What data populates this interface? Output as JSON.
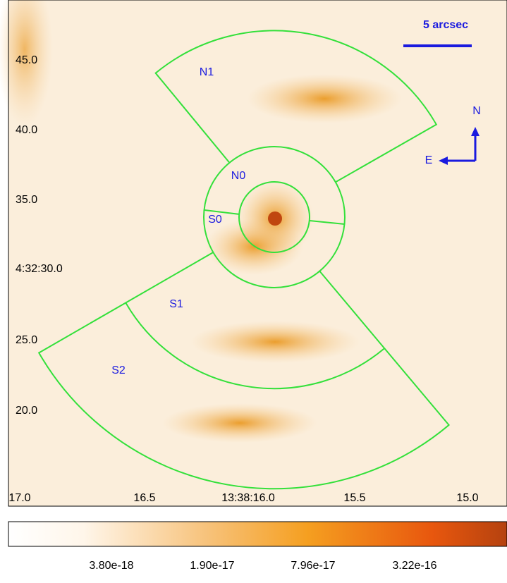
{
  "axes": {
    "y_tick_labels": [
      "45.0",
      "40.0",
      "35.0",
      "4:32:30.0",
      "25.0",
      "20.0"
    ],
    "x_tick_labels": [
      "17.0",
      "16.5",
      "13:38:16.0",
      "15.5",
      "15.0"
    ]
  },
  "regions": [
    "N1",
    "N0",
    "S0",
    "S1",
    "S2"
  ],
  "scale_bar": "5 arcsec",
  "compass": {
    "north": "N",
    "east": "E"
  },
  "colorbar": {
    "tick_labels": [
      "3.80e-18",
      "1.90e-17",
      "7.96e-17",
      "3.22e-16"
    ]
  }
}
